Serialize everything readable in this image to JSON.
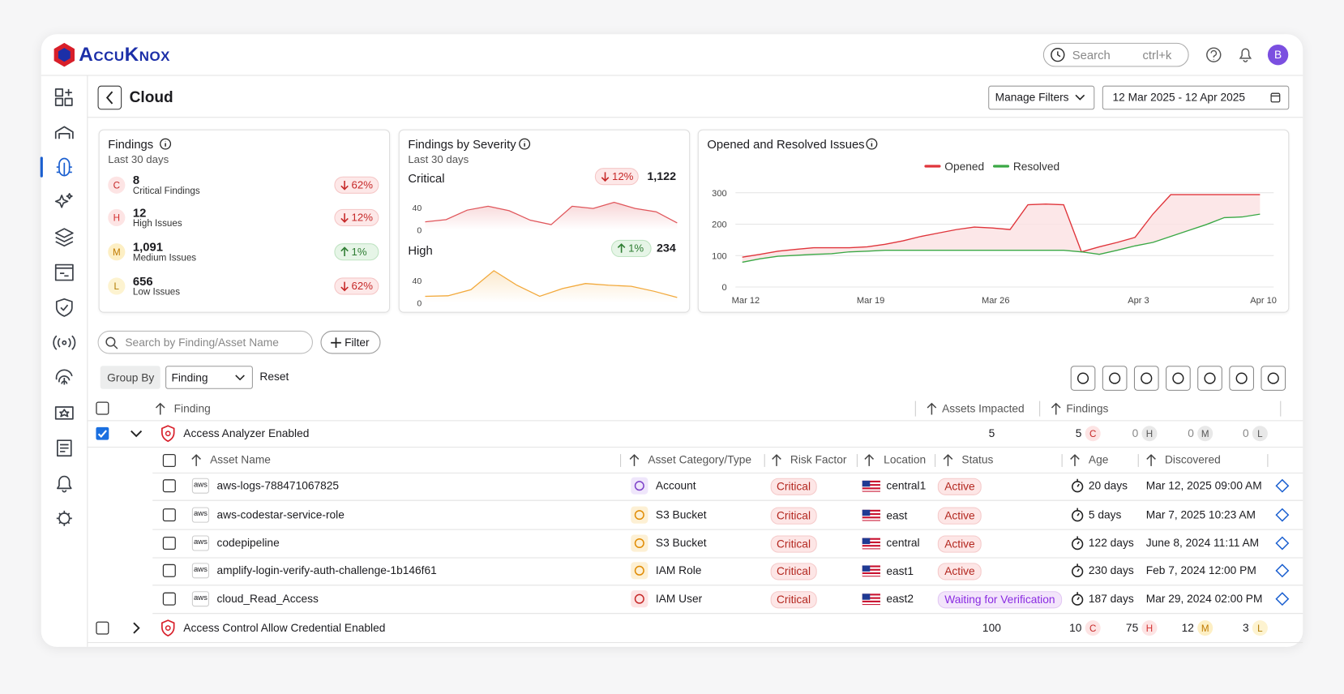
{
  "header": {
    "brand": "AccuKnox",
    "search_placeholder": "Search",
    "search_shortcut": "ctrl+k",
    "avatar": "B"
  },
  "page": {
    "title": "Cloud",
    "manage_filters": "Manage Filters",
    "date_range": "12 Mar 2025 - 12 Apr 2025"
  },
  "findings_card": {
    "title": "Findings",
    "subtitle": "Last 30 days",
    "items": [
      {
        "badge": "C",
        "value": "8",
        "label": "Critical Findings",
        "change": "62%",
        "direction": "down"
      },
      {
        "badge": "H",
        "value": "12",
        "label": "High Issues",
        "change": "12%",
        "direction": "down"
      },
      {
        "badge": "M",
        "value": "1,091",
        "label": "Medium Issues",
        "change": "1%",
        "direction": "up"
      },
      {
        "badge": "L",
        "value": "656",
        "label": "Low Issues",
        "change": "62%",
        "direction": "down"
      }
    ]
  },
  "severity_card": {
    "title": "Findings by Severity",
    "subtitle": "Last 30 days"
  },
  "issues_card": {
    "title": "Opened and Resolved Issues"
  },
  "chart_data": [
    {
      "type": "area",
      "name": "Critical",
      "change": "12%",
      "direction": "down",
      "total": "1,122",
      "color": "#e0565b",
      "ylim": [
        0,
        50
      ],
      "yticks": [
        0,
        40
      ],
      "values": [
        14,
        18,
        35,
        42,
        34,
        17,
        9,
        42,
        38,
        49,
        38,
        32,
        12
      ]
    },
    {
      "type": "area",
      "name": "High",
      "change": "1%",
      "direction": "up",
      "total": "234",
      "color": "#f2a93b",
      "ylim": [
        0,
        60
      ],
      "yticks": [
        0,
        40
      ],
      "values": [
        11,
        12,
        23,
        57,
        31,
        11,
        25,
        34,
        31,
        29,
        20,
        9
      ]
    },
    {
      "type": "line",
      "categories": [
        "Mar 12",
        null,
        null,
        null,
        null,
        null,
        null,
        "Mar 19",
        null,
        null,
        null,
        null,
        null,
        null,
        "Mar 26",
        null,
        null,
        null,
        null,
        null,
        null,
        null,
        "Apr 3",
        null,
        null,
        null,
        null,
        null,
        null,
        "Apr 10"
      ],
      "series": [
        {
          "name": "Opened",
          "color": "#e0353b",
          "values": [
            95,
            104,
            114,
            120,
            125,
            125,
            125,
            128,
            136,
            147,
            161,
            172,
            183,
            191,
            188,
            183,
            262,
            264,
            262,
            112,
            128,
            142,
            158,
            232,
            294,
            294,
            294,
            294,
            294,
            294
          ]
        },
        {
          "name": "Resolved",
          "color": "#3aa845",
          "values": [
            79,
            90,
            98,
            101,
            104,
            106,
            112,
            114,
            117,
            117,
            117,
            117,
            117,
            117,
            117,
            117,
            117,
            117,
            117,
            112,
            104,
            117,
            131,
            142,
            161,
            180,
            199,
            221,
            223,
            232
          ]
        }
      ],
      "ylim": [
        0,
        300
      ],
      "yticks": [
        0,
        100,
        200,
        300
      ],
      "grid": true,
      "legend": "top"
    }
  ],
  "toolbar": {
    "search_placeholder": "Search by Finding/Asset Name",
    "filter": "Filter",
    "group_by": "Group By",
    "group_value": "Finding",
    "reset": "Reset"
  },
  "table": {
    "columns": [
      "Finding",
      "Assets Impacted",
      "Findings"
    ],
    "sub_columns": [
      "Asset Name",
      "Asset Category/Type",
      "Risk Factor",
      "Location",
      "Status",
      "Age",
      "Discovered"
    ],
    "groups": [
      {
        "name": "Access Analyzer Enabled",
        "assets": "5",
        "checked": true,
        "expanded": true,
        "counts": [
          {
            "value": "5",
            "badge": "C"
          },
          {
            "value": "0",
            "badge": "H"
          },
          {
            "value": "0",
            "badge": "M"
          },
          {
            "value": "0",
            "badge": "L"
          }
        ],
        "rows": [
          {
            "provider": "aws",
            "name": "aws-logs-788471067825",
            "category": "Account",
            "risk": "Critical",
            "location": "central1",
            "status": "Active",
            "age": "20 days",
            "discovered": "Mar 12, 2025 09:00 AM"
          },
          {
            "provider": "aws",
            "name": "aws-codestar-service-role",
            "category": "S3 Bucket",
            "risk": "Critical",
            "location": "east",
            "status": "Active",
            "age": "5 days",
            "discovered": "Mar 7, 2025 10:23 AM"
          },
          {
            "provider": "aws",
            "name": "codepipeline",
            "category": "S3 Bucket",
            "risk": "Critical",
            "location": "central",
            "status": "Active",
            "age": "122 days",
            "discovered": "June 8, 2024 11:11 AM"
          },
          {
            "provider": "aws",
            "name": "amplify-login-verify-auth-challenge-1b146f61",
            "category": "IAM Role",
            "risk": "Critical",
            "location": "east1",
            "status": "Active",
            "age": "230 days",
            "discovered": "Feb 7, 2024 12:00 PM"
          },
          {
            "provider": "aws",
            "name": "cloud_Read_Access",
            "category": "IAM User",
            "risk": "Critical",
            "location": "east2",
            "status": "Waiting for Verification",
            "age": "187 days",
            "discovered": "Mar 29, 2024 02:00 PM"
          }
        ]
      },
      {
        "name": "Access Control Allow Credential Enabled",
        "assets": "100",
        "checked": false,
        "expanded": false,
        "counts": [
          {
            "value": "10",
            "badge": "C"
          },
          {
            "value": "75",
            "badge": "H"
          },
          {
            "value": "12",
            "badge": "M"
          },
          {
            "value": "3",
            "badge": "L"
          }
        ],
        "rows": []
      }
    ]
  }
}
